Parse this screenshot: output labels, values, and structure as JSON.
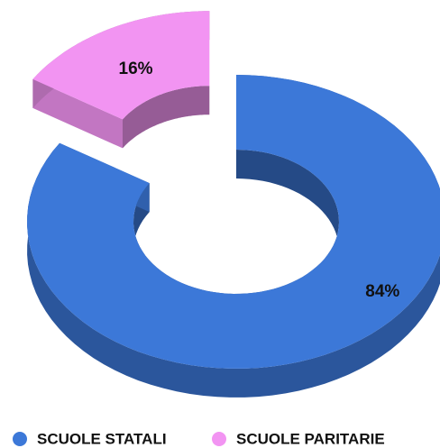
{
  "chart_data": {
    "type": "pie",
    "donut": true,
    "three_d": true,
    "categories": [
      "SCUOLE STATALI",
      "SCUOLE PARITARIE"
    ],
    "values": [
      84,
      16
    ],
    "value_labels": [
      "84%",
      "16%"
    ],
    "colors": [
      "#3c78d8",
      "#f294f2"
    ],
    "legend": "bottom"
  }
}
